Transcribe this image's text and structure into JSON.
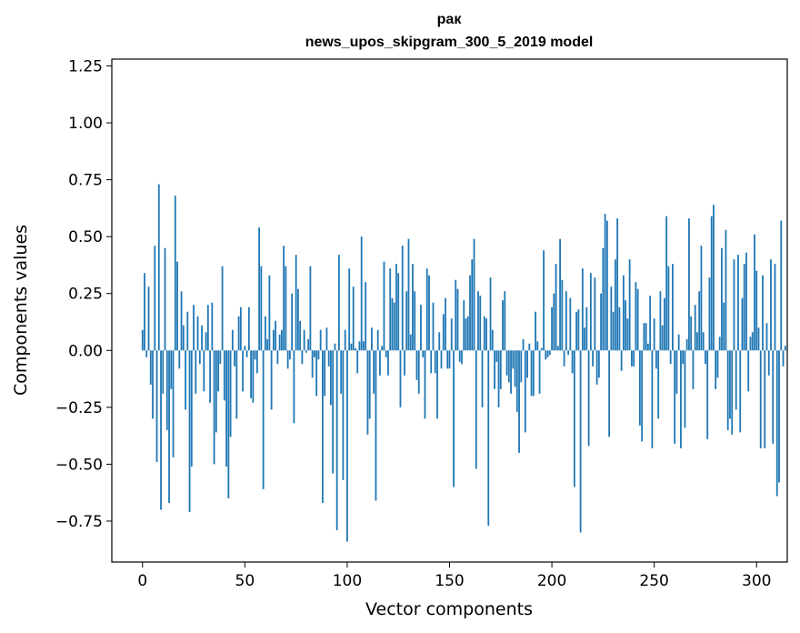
{
  "chart_data": {
    "type": "bar",
    "title": "рак",
    "subtitle": "news_upos_skipgram_300_5_2019 model",
    "xlabel": "Vector components",
    "ylabel": "Components values",
    "xlim": [
      -15,
      315
    ],
    "ylim": [
      -0.93,
      1.28
    ],
    "x_ticks": [
      0,
      50,
      100,
      150,
      200,
      250,
      300
    ],
    "y_ticks": [
      -0.75,
      -0.5,
      -0.25,
      0.0,
      0.25,
      0.5,
      0.75,
      1.0,
      1.25
    ],
    "x_tick_labels": [
      "0",
      "50",
      "100",
      "150",
      "200",
      "250",
      "300"
    ],
    "y_tick_labels": [
      "−0.75",
      "−0.50",
      "−0.25",
      "0.00",
      "0.25",
      "0.50",
      "0.75",
      "1.00",
      "1.25"
    ],
    "grid": false,
    "bar_color": "#1f77b4",
    "values": [
      0.09,
      0.34,
      -0.03,
      0.28,
      -0.15,
      -0.3,
      0.46,
      -0.49,
      0.73,
      -0.7,
      -0.19,
      0.45,
      -0.35,
      -0.67,
      -0.17,
      -0.47,
      0.68,
      0.39,
      -0.08,
      0.26,
      0.11,
      -0.26,
      0.17,
      -0.71,
      -0.51,
      0.2,
      -0.19,
      0.15,
      -0.06,
      0.11,
      -0.18,
      0.08,
      0.2,
      -0.23,
      0.21,
      -0.5,
      -0.36,
      -0.18,
      -0.06,
      0.37,
      -0.22,
      -0.51,
      -0.65,
      -0.38,
      0.09,
      -0.07,
      -0.3,
      0.15,
      0.19,
      -0.18,
      0.02,
      -0.03,
      0.19,
      -0.21,
      -0.23,
      -0.04,
      -0.1,
      0.54,
      0.37,
      -0.61,
      0.15,
      0.05,
      0.33,
      -0.26,
      0.09,
      0.13,
      -0.06,
      0.07,
      0.09,
      0.46,
      0.37,
      -0.08,
      -0.04,
      0.25,
      -0.32,
      0.42,
      0.27,
      0.13,
      -0.06,
      0.09,
      -0.01,
      0.05,
      0.37,
      -0.12,
      -0.03,
      -0.2,
      -0.04,
      0.09,
      -0.67,
      -0.2,
      0.1,
      -0.07,
      -0.24,
      -0.54,
      0.03,
      -0.79,
      0.42,
      -0.19,
      -0.57,
      0.09,
      -0.84,
      0.36,
      0.03,
      0.28,
      0.01,
      -0.1,
      0.04,
      0.5,
      0.04,
      0.3,
      -0.37,
      -0.3,
      0.1,
      -0.19,
      -0.66,
      0.09,
      -0.11,
      0.02,
      0.39,
      -0.03,
      -0.11,
      0.36,
      0.23,
      0.21,
      0.38,
      0.34,
      -0.25,
      0.46,
      -0.11,
      0.26,
      0.49,
      0.07,
      0.38,
      0.26,
      -0.13,
      -0.19,
      0.2,
      -0.03,
      -0.3,
      0.36,
      0.33,
      -0.1,
      0.21,
      -0.1,
      -0.3,
      0.08,
      -0.08,
      0.16,
      0.23,
      -0.08,
      -0.08,
      0.14,
      -0.6,
      0.31,
      0.27,
      -0.05,
      -0.06,
      0.22,
      0.14,
      0.15,
      0.33,
      0.4,
      0.49,
      -0.52,
      0.26,
      0.24,
      -0.25,
      0.15,
      0.14,
      -0.77,
      0.32,
      0.09,
      -0.17,
      -0.05,
      -0.25,
      -0.17,
      0.22,
      0.26,
      -0.11,
      -0.14,
      -0.19,
      -0.08,
      -0.16,
      -0.27,
      -0.45,
      -0.14,
      0.05,
      -0.36,
      -0.12,
      0.03,
      -0.2,
      -0.2,
      0.17,
      0.04,
      -0.19,
      0.01,
      0.44,
      -0.04,
      -0.03,
      -0.02,
      0.19,
      0.25,
      0.38,
      0.02,
      0.49,
      0.31,
      -0.07,
      0.26,
      -0.02,
      0.23,
      -0.1,
      -0.6,
      0.17,
      0.18,
      -0.8,
      0.36,
      0.1,
      0.19,
      -0.42,
      0.34,
      -0.07,
      0.32,
      -0.15,
      -0.12,
      0.25,
      0.45,
      0.6,
      0.57,
      -0.38,
      0.28,
      0.17,
      0.4,
      0.58,
      0.19,
      -0.09,
      0.33,
      0.22,
      0.14,
      0.4,
      -0.07,
      -0.07,
      0.3,
      0.27,
      -0.33,
      -0.4,
      0.12,
      0.12,
      0.03,
      0.24,
      -0.43,
      0.14,
      -0.08,
      -0.3,
      0.26,
      0.11,
      0.23,
      0.59,
      0.37,
      -0.06,
      0.38,
      -0.41,
      -0.19,
      0.07,
      -0.43,
      -0.06,
      -0.34,
      0.05,
      0.58,
      0.15,
      -0.17,
      0.2,
      0.08,
      0.26,
      0.46,
      0.08,
      -0.06,
      -0.39,
      0.32,
      0.59,
      0.64,
      -0.17,
      -0.12,
      0.06,
      0.45,
      0.21,
      0.53,
      -0.35,
      -0.3,
      -0.37,
      0.4,
      -0.26,
      0.42,
      -0.36,
      0.23,
      0.38,
      0.43,
      -0.18,
      0.06,
      0.08,
      0.51,
      0.35,
      0.1,
      -0.43,
      0.33,
      -0.43,
      0.12,
      -0.11,
      0.4,
      -0.41,
      0.38,
      -0.64,
      -0.58,
      0.57,
      -0.07,
      0.02,
      0.0
    ]
  }
}
